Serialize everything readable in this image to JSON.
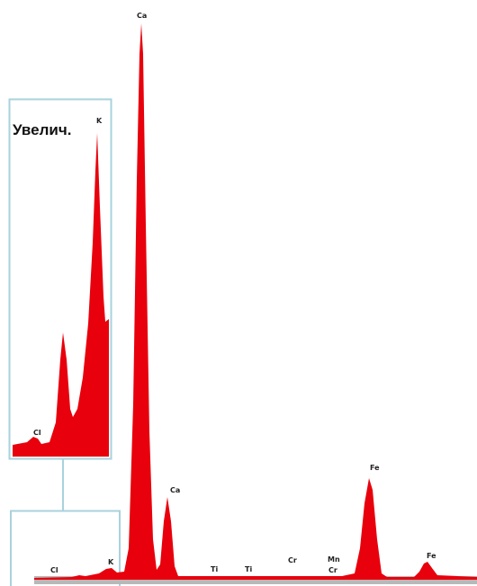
{
  "inset": {
    "title": "Увелич.",
    "labels": [
      "K",
      "Cl"
    ]
  },
  "spectrum": {
    "labels": [
      "Ca",
      "Ca",
      "Fe",
      "Fe",
      "Ti",
      "Ti",
      "Cr",
      "Mn",
      "Cr",
      "Cl",
      "K"
    ]
  }
}
